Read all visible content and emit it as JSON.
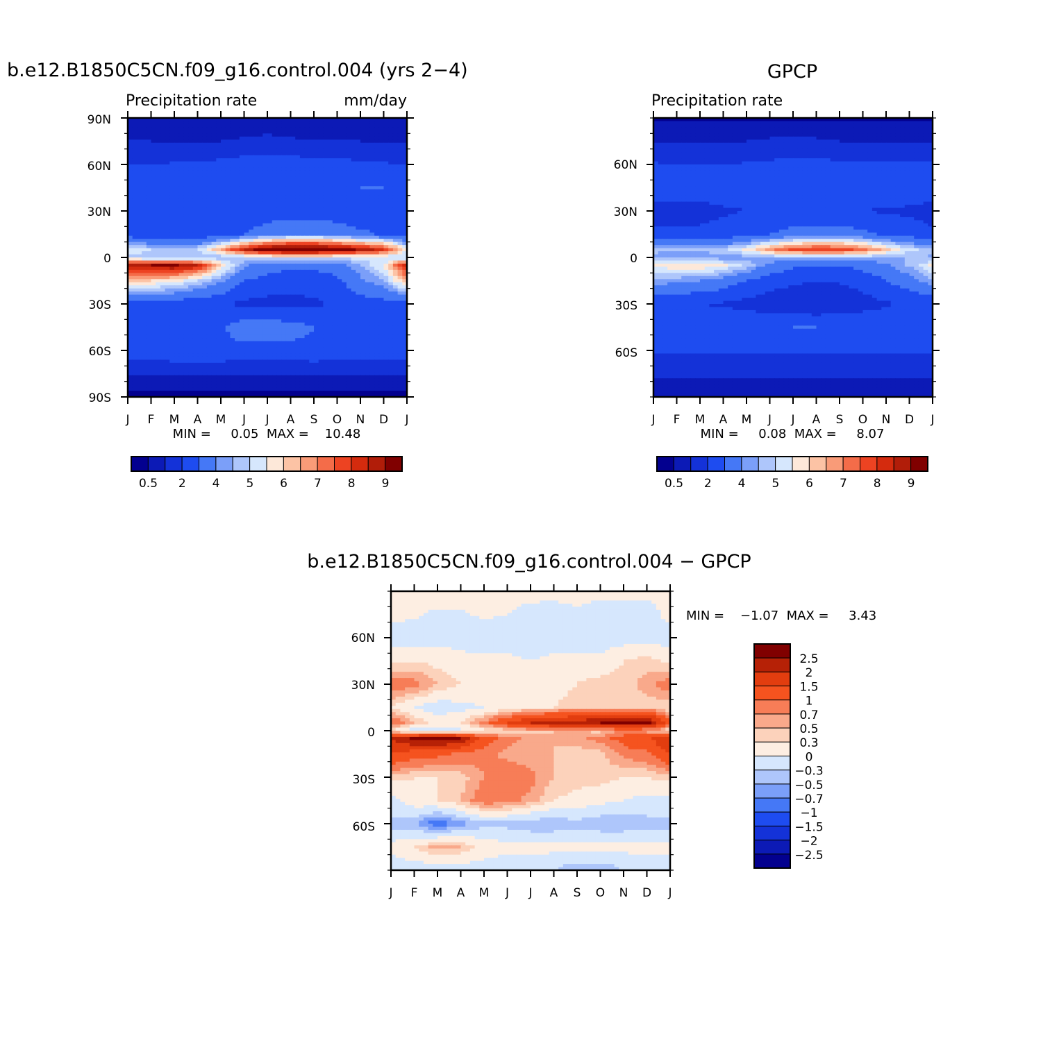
{
  "palette_abs": [
    "#03008f",
    "#0c1ab6",
    "#1432d8",
    "#1e4cf0",
    "#4578f6",
    "#7b9ff9",
    "#aec6fb",
    "#d6e7fd",
    "#fde8d9",
    "#fcc3a5",
    "#f99b78",
    "#f46c49",
    "#ed4322",
    "#d42b0e",
    "#b11d09",
    "#800000"
  ],
  "palette_diff": [
    "#03008f",
    "#0c1ab6",
    "#1432d8",
    "#1e4cf0",
    "#4578f6",
    "#7b9ff9",
    "#aec6fb",
    "#d6e7fd",
    "#fdeee2",
    "#fcd2bb",
    "#f9a98b",
    "#f77d57",
    "#f5531f",
    "#e23d0f",
    "#b62106",
    "#800000"
  ],
  "panels": {
    "model": {
      "title": "b.e12.B1850C5CN.f09_g16.control.004 (yrs 2−4)",
      "left_label": "Precipitation rate",
      "right_label": "mm/day",
      "stats": "MIN =     0.05  MAX =    10.48",
      "y_ticks": [
        "90N",
        "60N",
        "30N",
        "0",
        "30S",
        "60S",
        "90S"
      ],
      "x_ticks": [
        "J",
        "F",
        "M",
        "A",
        "M",
        "J",
        "J",
        "A",
        "S",
        "O",
        "N",
        "D",
        "J"
      ],
      "colorbar_labels": [
        "0.5",
        "2",
        "4",
        "5",
        "6",
        "7",
        "8",
        "9"
      ]
    },
    "obs": {
      "title": "GPCP",
      "left_label": "Precipitation rate",
      "stats": "MIN =     0.08  MAX =     8.07",
      "y_ticks": [
        "60N",
        "30N",
        "0",
        "30S",
        "60S"
      ],
      "x_ticks": [
        "J",
        "F",
        "M",
        "A",
        "M",
        "J",
        "J",
        "A",
        "S",
        "O",
        "N",
        "D",
        "J"
      ],
      "colorbar_labels": [
        "0.5",
        "2",
        "4",
        "5",
        "6",
        "7",
        "8",
        "9"
      ]
    },
    "diff": {
      "title": "b.e12.B1850C5CN.f09_g16.control.004 − GPCP",
      "stats": "MIN =    −1.07  MAX =     3.43",
      "y_ticks": [
        "60N",
        "30N",
        "0",
        "30S",
        "60S"
      ],
      "x_ticks": [
        "J",
        "F",
        "M",
        "A",
        "M",
        "J",
        "J",
        "A",
        "S",
        "O",
        "N",
        "D",
        "J"
      ],
      "colorbar_labels": [
        "2.5",
        "2",
        "1.5",
        "1",
        "0.7",
        "0.5",
        "0.3",
        "0",
        "−0.3",
        "−0.5",
        "−0.7",
        "−1",
        "−1.5",
        "−2",
        "−2.5"
      ]
    }
  },
  "chart_data": [
    {
      "type": "heatmap",
      "title": "b.e12.B1850C5CN.f09_g16.control.004 (yrs 2−4)",
      "left_label": "Precipitation rate",
      "units": "mm/day",
      "x": [
        "J",
        "F",
        "M",
        "A",
        "M",
        "J",
        "J",
        "A",
        "S",
        "O",
        "N",
        "D",
        "J"
      ],
      "y": [
        90,
        75,
        60,
        45,
        30,
        15,
        5,
        0,
        -5,
        -15,
        -30,
        -45,
        -60,
        -75,
        -90
      ],
      "levels": [
        0.5,
        1,
        2,
        3,
        4,
        4.5,
        5,
        5.5,
        6,
        6.5,
        7,
        7.5,
        8,
        8.5,
        9
      ],
      "z": [
        [
          0.5,
          0.5,
          0.5,
          0.5,
          0.5,
          0.5,
          0.5,
          0.5,
          0.5,
          0.5,
          0.5,
          0.5,
          0.5
        ],
        [
          1.0,
          1.0,
          0.9,
          0.9,
          1.0,
          1.1,
          1.2,
          1.1,
          1.0,
          1.0,
          1.0,
          0.9,
          1.0
        ],
        [
          2.0,
          2.0,
          2.1,
          2.1,
          2.3,
          2.5,
          2.6,
          2.5,
          2.4,
          2.3,
          2.2,
          2.1,
          2.0
        ],
        [
          2.8,
          2.9,
          2.8,
          2.6,
          2.5,
          2.6,
          2.6,
          2.6,
          2.6,
          2.8,
          3.0,
          3.0,
          2.8
        ],
        [
          2.5,
          2.4,
          2.3,
          2.2,
          2.2,
          2.3,
          2.5,
          2.6,
          2.5,
          2.4,
          2.3,
          2.4,
          2.5
        ],
        [
          2.5,
          2.2,
          2.0,
          2.2,
          2.6,
          3.0,
          3.5,
          3.8,
          3.9,
          3.6,
          3.2,
          2.9,
          2.5
        ],
        [
          5.5,
          5.0,
          4.8,
          5.0,
          6.5,
          8.5,
          9.6,
          10.2,
          10.0,
          9.5,
          8.8,
          8.2,
          5.5
        ],
        [
          4.8,
          4.6,
          4.5,
          4.5,
          4.6,
          4.8,
          5.0,
          5.2,
          5.2,
          5.1,
          5.3,
          5.0,
          4.8
        ],
        [
          8.5,
          9.0,
          9.2,
          8.5,
          6.0,
          4.2,
          3.5,
          3.2,
          3.2,
          3.5,
          4.5,
          5.5,
          8.5
        ],
        [
          6.5,
          6.0,
          5.8,
          5.0,
          4.2,
          3.0,
          2.6,
          2.4,
          2.5,
          2.8,
          3.8,
          4.5,
          6.5
        ],
        [
          2.6,
          2.5,
          2.4,
          2.3,
          2.1,
          1.8,
          1.7,
          1.7,
          1.8,
          2.2,
          2.5,
          2.6,
          2.6
        ],
        [
          2.5,
          2.6,
          2.7,
          2.8,
          2.9,
          3.5,
          3.6,
          3.4,
          3.0,
          2.8,
          2.7,
          2.6,
          2.5
        ],
        [
          2.8,
          2.8,
          2.9,
          2.9,
          2.8,
          2.7,
          2.7,
          2.7,
          2.8,
          2.8,
          2.8,
          2.8,
          2.8
        ],
        [
          1.0,
          1.0,
          1.0,
          1.1,
          1.1,
          1.1,
          1.1,
          1.1,
          1.1,
          1.0,
          1.0,
          1.0,
          1.0
        ],
        [
          0.3,
          0.3,
          0.3,
          0.3,
          0.3,
          0.3,
          0.3,
          0.3,
          0.3,
          0.3,
          0.3,
          0.3,
          0.3
        ]
      ],
      "min": 0.05,
      "max": 10.48
    },
    {
      "type": "heatmap",
      "title": "GPCP",
      "left_label": "Precipitation rate",
      "x": [
        "J",
        "F",
        "M",
        "A",
        "M",
        "J",
        "J",
        "A",
        "S",
        "O",
        "N",
        "D",
        "J"
      ],
      "y": [
        90,
        75,
        60,
        45,
        30,
        15,
        5,
        0,
        -5,
        -15,
        -30,
        -45,
        -60,
        -75,
        -90
      ],
      "levels": [
        0.5,
        1,
        2,
        3,
        4,
        4.5,
        5,
        5.5,
        6,
        6.5,
        7,
        7.5,
        8,
        8.5,
        9
      ],
      "z": [
        [
          0.4,
          0.4,
          0.4,
          0.4,
          0.4,
          0.4,
          0.4,
          0.4,
          0.4,
          0.4,
          0.4,
          0.4,
          0.4
        ],
        [
          0.9,
          0.9,
          0.9,
          0.9,
          1.0,
          1.1,
          1.2,
          1.1,
          1.0,
          0.9,
          0.9,
          0.9,
          0.9
        ],
        [
          2.1,
          2.0,
          2.0,
          2.0,
          2.1,
          2.2,
          2.3,
          2.3,
          2.2,
          2.2,
          2.1,
          2.1,
          2.1
        ],
        [
          2.6,
          2.5,
          2.5,
          2.4,
          2.4,
          2.5,
          2.6,
          2.5,
          2.5,
          2.6,
          2.7,
          2.7,
          2.6
        ],
        [
          1.6,
          1.6,
          1.7,
          1.9,
          2.0,
          2.2,
          2.3,
          2.2,
          2.1,
          2.0,
          1.9,
          1.8,
          1.6
        ],
        [
          2.2,
          2.2,
          2.2,
          2.3,
          2.6,
          3.0,
          3.3,
          3.5,
          3.5,
          3.2,
          2.8,
          2.5,
          2.2
        ],
        [
          4.6,
          4.5,
          4.6,
          4.8,
          5.6,
          6.8,
          7.6,
          8.0,
          7.8,
          7.2,
          6.2,
          5.2,
          4.6
        ],
        [
          4.4,
          4.3,
          4.2,
          4.2,
          4.3,
          4.5,
          4.6,
          4.7,
          4.7,
          4.6,
          4.5,
          4.5,
          4.4
        ],
        [
          5.6,
          5.9,
          6.0,
          5.6,
          4.8,
          3.8,
          3.2,
          3.0,
          3.0,
          3.3,
          3.9,
          4.6,
          5.6
        ],
        [
          4.4,
          4.2,
          4.0,
          3.6,
          3.0,
          2.5,
          2.2,
          2.0,
          2.1,
          2.4,
          3.0,
          3.6,
          4.4
        ],
        [
          2.2,
          2.1,
          2.0,
          1.9,
          1.7,
          1.4,
          1.2,
          1.1,
          1.3,
          1.6,
          1.9,
          2.1,
          2.2
        ],
        [
          2.6,
          2.6,
          2.6,
          2.7,
          2.8,
          2.9,
          3.0,
          3.0,
          2.9,
          2.8,
          2.7,
          2.6,
          2.6
        ],
        [
          2.2,
          2.2,
          2.2,
          2.2,
          2.2,
          2.2,
          2.2,
          2.2,
          2.2,
          2.2,
          2.2,
          2.2,
          2.2
        ],
        [
          1.1,
          1.1,
          1.1,
          1.1,
          1.1,
          1.1,
          1.1,
          1.1,
          1.1,
          1.1,
          1.1,
          1.1,
          1.1
        ],
        [
          0.5,
          0.5,
          0.5,
          0.5,
          0.5,
          0.5,
          0.5,
          0.5,
          0.5,
          0.5,
          0.5,
          0.5,
          0.5
        ]
      ],
      "min": 0.08,
      "max": 8.07
    },
    {
      "type": "heatmap",
      "title": "b.e12.B1850C5CN.f09_g16.control.004 − GPCP",
      "x": [
        "J",
        "F",
        "M",
        "A",
        "M",
        "J",
        "J",
        "A",
        "S",
        "O",
        "N",
        "D",
        "J"
      ],
      "y": [
        90,
        75,
        60,
        45,
        30,
        15,
        5,
        0,
        -5,
        -15,
        -30,
        -45,
        -60,
        -75,
        -90
      ],
      "levels": [
        -2.5,
        -2,
        -1.5,
        -1,
        -0.7,
        -0.5,
        -0.3,
        0,
        0.3,
        0.5,
        0.7,
        1,
        1.5,
        2,
        2.5
      ],
      "z": [
        [
          0.1,
          0.15,
          0.3,
          0.25,
          0.1,
          0.05,
          0.05,
          0.08,
          0.1,
          0.05,
          0.05,
          0.1,
          0.1
        ],
        [
          0.1,
          0.05,
          -0.1,
          -0.05,
          0.05,
          0.0,
          -0.05,
          -0.1,
          -0.05,
          -0.1,
          -0.1,
          -0.15,
          0.1
        ],
        [
          -0.15,
          -0.2,
          -0.1,
          -0.2,
          -0.25,
          -0.1,
          -0.2,
          -0.25,
          -0.3,
          -0.2,
          -0.15,
          -0.1,
          -0.15
        ],
        [
          0.2,
          0.3,
          0.2,
          0.15,
          0.1,
          0.05,
          0.0,
          0.1,
          0.2,
          0.1,
          0.3,
          0.4,
          0.2
        ],
        [
          0.9,
          0.8,
          0.5,
          0.3,
          0.2,
          0.1,
          0.2,
          0.2,
          0.3,
          0.4,
          0.4,
          0.6,
          0.9
        ],
        [
          0.3,
          0.0,
          -0.2,
          -0.1,
          0.0,
          0.1,
          0.2,
          0.3,
          0.4,
          0.4,
          0.4,
          0.4,
          0.3
        ],
        [
          1.0,
          0.5,
          0.2,
          0.3,
          0.8,
          1.5,
          2.0,
          2.2,
          2.3,
          2.5,
          2.6,
          2.8,
          1.0
        ],
        [
          0.3,
          -0.2,
          -0.2,
          -0.1,
          0.2,
          0.3,
          0.4,
          0.5,
          0.5,
          0.4,
          0.8,
          0.5,
          0.3
        ],
        [
          2.0,
          2.6,
          2.8,
          2.5,
          1.2,
          0.8,
          0.6,
          0.5,
          0.6,
          0.8,
          1.2,
          1.4,
          2.0
        ],
        [
          1.5,
          1.2,
          1.1,
          0.9,
          0.8,
          0.6,
          0.5,
          0.5,
          0.4,
          0.4,
          0.8,
          0.9,
          1.5
        ],
        [
          0.4,
          0.3,
          0.3,
          0.4,
          0.7,
          1.0,
          0.8,
          0.5,
          0.4,
          0.4,
          0.3,
          0.3,
          0.4
        ],
        [
          -0.1,
          0.2,
          0.3,
          0.5,
          0.9,
          0.8,
          0.6,
          0.3,
          0.2,
          0.1,
          0.0,
          -0.1,
          -0.1
        ],
        [
          -0.4,
          -0.5,
          -0.9,
          -0.6,
          -0.4,
          -0.4,
          -0.5,
          -0.5,
          -0.4,
          -0.5,
          -0.5,
          -0.4,
          -0.4
        ],
        [
          0.1,
          0.3,
          0.6,
          0.5,
          0.2,
          0.1,
          0.1,
          0.1,
          0.1,
          0.1,
          0.1,
          0.1,
          0.1
        ],
        [
          -0.2,
          -0.2,
          -0.2,
          -0.2,
          -0.2,
          -0.2,
          -0.2,
          -0.3,
          -0.5,
          -0.5,
          -0.3,
          -0.2,
          -0.2
        ]
      ],
      "min": -1.07,
      "max": 3.43
    }
  ]
}
